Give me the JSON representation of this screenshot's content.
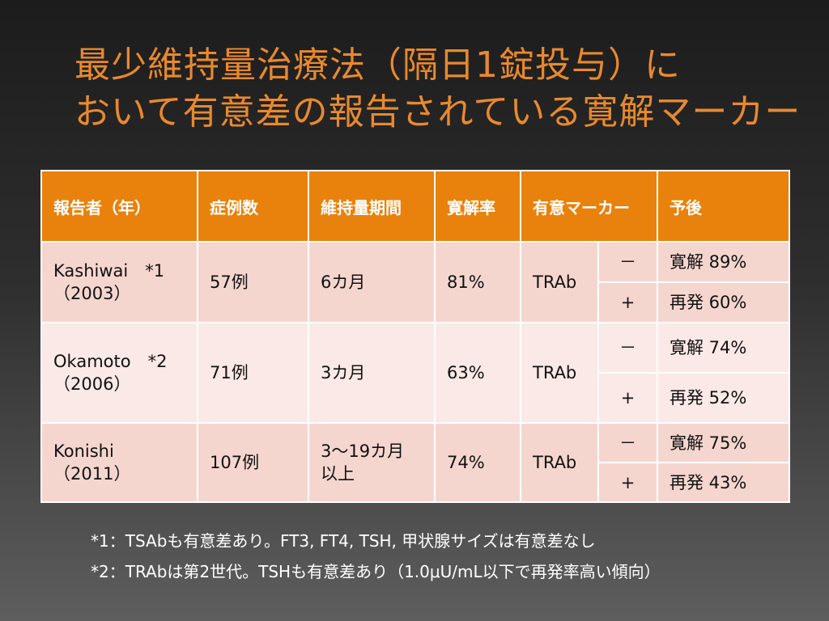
{
  "title": {
    "line1": "最少維持量治療法（隔日1錠投与）に",
    "line2": "おいて有意差の報告されている寛解マーカー"
  },
  "table": {
    "headers": [
      "報告者（年）",
      "症例数",
      "維持量期間",
      "寛解率",
      "有意マーカー",
      "予後"
    ],
    "groups": [
      {
        "reporter": "Kashiwai　*1",
        "year": "（2003）",
        "cases": "57例",
        "period": "6カ月",
        "rate": "81%",
        "marker": "TRAb",
        "neg_sign": "－",
        "neg_outcome": "寛解 89%",
        "pos_sign": "+",
        "pos_outcome": "再発 60%"
      },
      {
        "reporter": "Okamoto　*2",
        "year": "（2006）",
        "cases": "71例",
        "period": "3カ月",
        "rate": "63%",
        "marker": "TRAb",
        "neg_sign": "－",
        "neg_outcome": "寛解 74%",
        "pos_sign": "+",
        "pos_outcome": "再発 52%"
      },
      {
        "reporter": "Konishi",
        "year": "（2011）",
        "cases": "107例",
        "period": "3～19カ月",
        "period2": "以上",
        "rate": "74%",
        "marker": "TRAb",
        "neg_sign": "－",
        "neg_outcome": "寛解 75%",
        "pos_sign": "+",
        "pos_outcome": "再発 43%"
      }
    ]
  },
  "notes": [
    "*1：TSAbも有意差あり。FT3, FT4, TSH, 甲状腺サイズは有意差なし",
    "*2：TRAbは第2世代。TSHも有意差あり（1.0μU/mL以下で再発率高い傾向）"
  ],
  "colors": {
    "title": "#e8892e",
    "header_bg": "#e8820c",
    "row_dark": "#f5d6cf",
    "row_light": "#fae9e6"
  }
}
